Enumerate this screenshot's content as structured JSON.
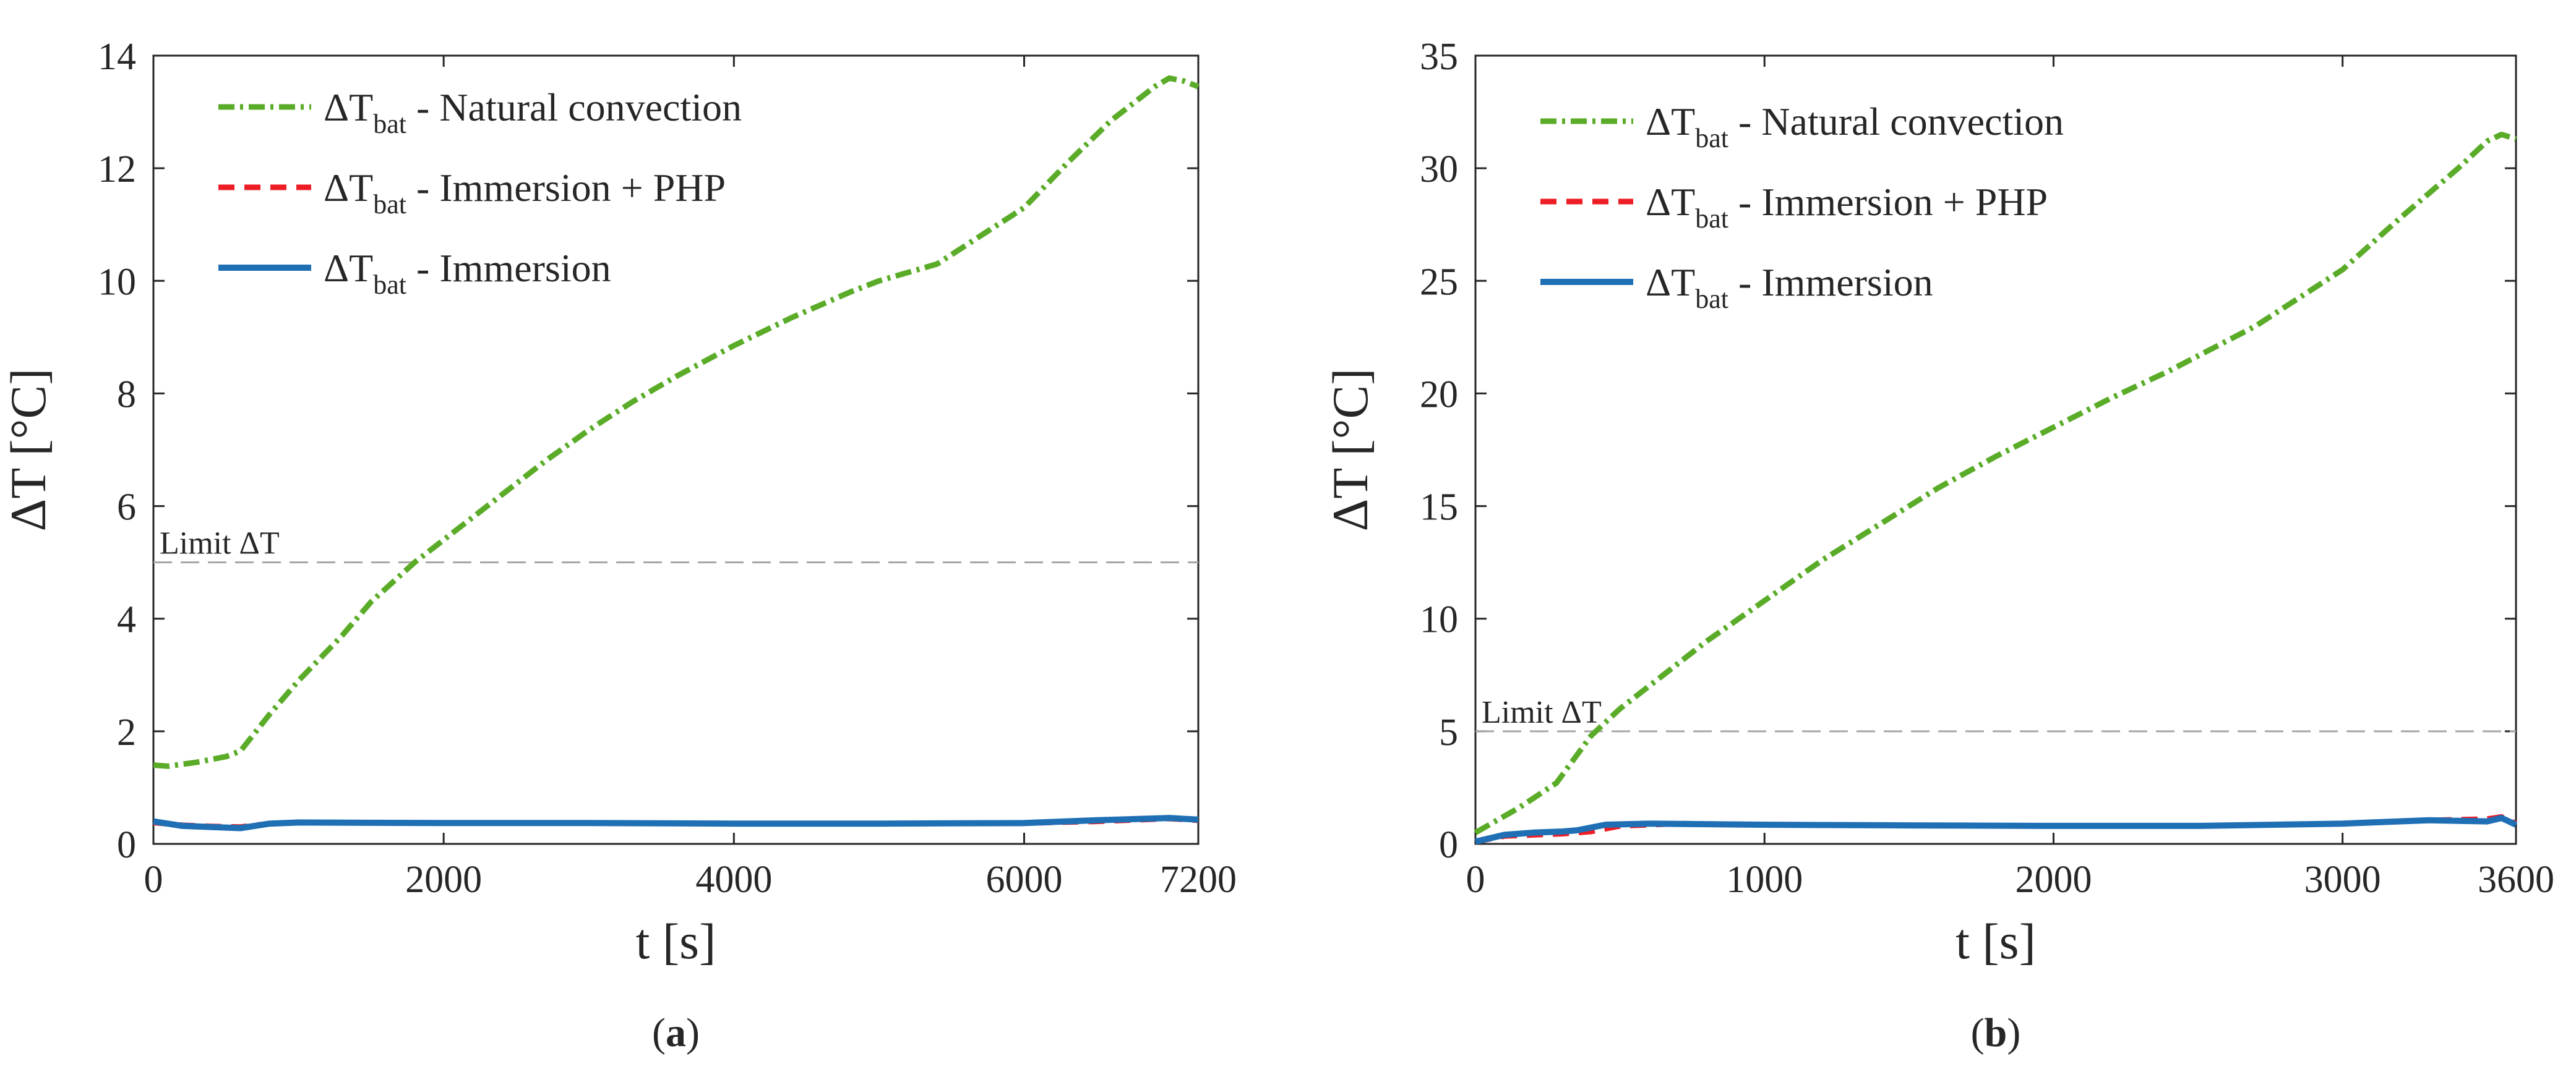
{
  "colors": {
    "natural": "#5aac28",
    "php": "#ee1c24",
    "immersion": "#1f6fb5",
    "limit": "#a6a6a6",
    "axis": "#262626"
  },
  "chart_data": [
    {
      "type": "line",
      "panel_label": "(a)",
      "panel_letter": "a",
      "xlabel_main": "t",
      "xlabel_unit": "[s]",
      "ylabel_main": "ΔT",
      "ylabel_unit": "[°C]",
      "xlim": [
        0,
        7200
      ],
      "ylim": [
        0,
        14
      ],
      "xticks": [
        0,
        2000,
        4000,
        6000,
        7200
      ],
      "yticks": [
        0,
        2,
        4,
        6,
        8,
        10,
        12,
        14
      ],
      "legend_position": "top-left",
      "limit": {
        "value": 5,
        "label": "Limit ΔT"
      },
      "series": [
        {
          "key": "natural",
          "name_main": "ΔT",
          "name_sub": "bat",
          "name_rest": " - Natural convection",
          "style": "dashdot",
          "x": [
            0,
            100,
            300,
            500,
            600,
            800,
            1000,
            1300,
            1500,
            1800,
            2100,
            2400,
            2700,
            3000,
            3300,
            3600,
            4000,
            4400,
            4800,
            5000,
            5400,
            5700,
            6000,
            6300,
            6600,
            6900,
            7000,
            7100,
            7200
          ],
          "y": [
            1.4,
            1.38,
            1.45,
            1.55,
            1.65,
            2.3,
            2.9,
            3.7,
            4.3,
            5.0,
            5.6,
            6.2,
            6.8,
            7.35,
            7.85,
            8.3,
            8.85,
            9.35,
            9.8,
            10.0,
            10.3,
            10.8,
            11.3,
            12.1,
            12.85,
            13.45,
            13.6,
            13.55,
            13.45
          ]
        },
        {
          "key": "php",
          "name_main": "ΔT",
          "name_sub": "bat",
          "name_rest": " - Immersion + PHP",
          "style": "dashed",
          "x": [
            0,
            200,
            400,
            600,
            800,
            1000,
            2000,
            3000,
            4000,
            5000,
            6000,
            6500,
            7000,
            7200
          ],
          "y": [
            0.38,
            0.33,
            0.31,
            0.3,
            0.36,
            0.38,
            0.37,
            0.37,
            0.36,
            0.36,
            0.37,
            0.4,
            0.45,
            0.42
          ]
        },
        {
          "key": "immersion",
          "name_main": "ΔT",
          "name_sub": "bat",
          "name_rest": " - Immersion",
          "style": "solid",
          "x": [
            0,
            200,
            400,
            600,
            800,
            1000,
            2000,
            3000,
            4000,
            5000,
            6000,
            6500,
            7000,
            7200
          ],
          "y": [
            0.4,
            0.32,
            0.3,
            0.28,
            0.36,
            0.38,
            0.37,
            0.37,
            0.36,
            0.36,
            0.37,
            0.42,
            0.46,
            0.43
          ]
        }
      ]
    },
    {
      "type": "line",
      "panel_label": "(b)",
      "panel_letter": "b",
      "xlabel_main": "t",
      "xlabel_unit": "[s]",
      "ylabel_main": "ΔT",
      "ylabel_unit": "[°C]",
      "xlim": [
        0,
        3600
      ],
      "ylim": [
        0,
        35
      ],
      "xticks": [
        0,
        1000,
        2000,
        3000,
        3600
      ],
      "yticks": [
        0,
        5,
        10,
        15,
        20,
        25,
        30,
        35
      ],
      "legend_position": "top-left",
      "limit": {
        "value": 5,
        "label": "Limit ΔT"
      },
      "series": [
        {
          "key": "natural",
          "name_main": "ΔT",
          "name_sub": "bat",
          "name_rest": " - Natural convection",
          "style": "dashdot",
          "x": [
            0,
            150,
            280,
            400,
            500,
            650,
            800,
            1000,
            1200,
            1400,
            1600,
            1800,
            2000,
            2200,
            2400,
            2700,
            3000,
            3200,
            3400,
            3500,
            3550,
            3600
          ],
          "y": [
            0.5,
            1.6,
            2.7,
            4.8,
            6.0,
            7.5,
            9.0,
            10.8,
            12.6,
            14.2,
            15.8,
            17.2,
            18.5,
            19.8,
            21.0,
            23.0,
            25.5,
            27.8,
            30.0,
            31.2,
            31.5,
            31.3
          ]
        },
        {
          "key": "php",
          "name_main": "ΔT",
          "name_sub": "bat",
          "name_rest": " - Immersion + PHP",
          "style": "dashed",
          "x": [
            0,
            100,
            200,
            300,
            400,
            500,
            700,
            1000,
            1500,
            2000,
            2500,
            3000,
            3300,
            3500,
            3550,
            3600
          ],
          "y": [
            0.1,
            0.35,
            0.4,
            0.45,
            0.55,
            0.8,
            0.9,
            0.85,
            0.82,
            0.8,
            0.8,
            0.9,
            1.05,
            1.1,
            1.2,
            0.9
          ]
        },
        {
          "key": "immersion",
          "name_main": "ΔT",
          "name_sub": "bat",
          "name_rest": " - Immersion",
          "style": "solid",
          "x": [
            0,
            100,
            200,
            300,
            350,
            450,
            600,
            1000,
            1500,
            2000,
            2500,
            3000,
            3300,
            3500,
            3550,
            3600
          ],
          "y": [
            0.1,
            0.4,
            0.5,
            0.55,
            0.6,
            0.85,
            0.9,
            0.85,
            0.82,
            0.8,
            0.8,
            0.9,
            1.05,
            1.0,
            1.15,
            0.85
          ]
        }
      ]
    }
  ]
}
